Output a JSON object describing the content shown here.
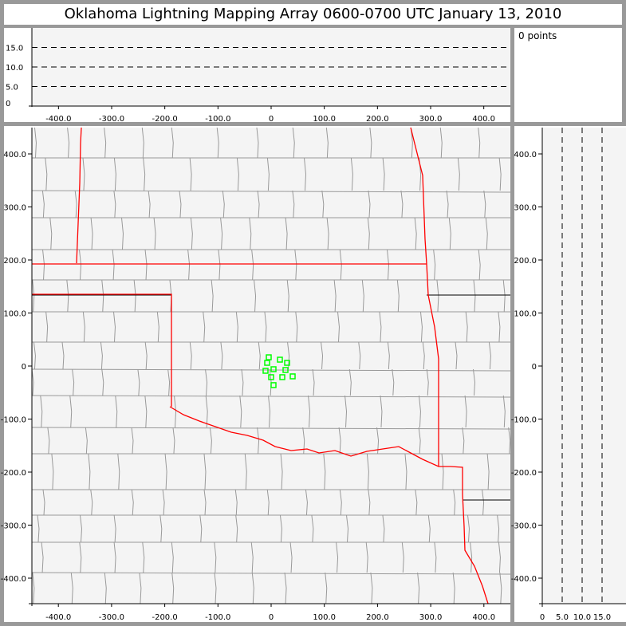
{
  "title": "Oklahoma Lightning Mapping Array   0600-0700 UTC  January 13, 2010",
  "point_count": "0 points",
  "colors": {
    "plot_bg": "#f4f4f4",
    "state_border": "#ff0000",
    "county_border": "#999999",
    "station": "#00ff00",
    "frame": "#999999"
  },
  "chart_data": [
    {
      "type": "line",
      "name": "altitude-vs-x",
      "x_ticks": [
        "-400.0",
        "-300.0",
        "-200.0",
        "-100.0",
        "0",
        "100.0",
        "200.0",
        "300.0",
        "400.0"
      ],
      "x_tick_values": [
        -400,
        -300,
        -200,
        -100,
        0,
        100,
        200,
        300,
        400
      ],
      "y_ticks": [
        "0",
        "5.0",
        "10.0",
        "15.0"
      ],
      "y_tick_values": [
        0,
        5,
        10,
        15
      ],
      "xlim": [
        -450,
        450
      ],
      "ylim": [
        0,
        20
      ],
      "dashed_levels": [
        5,
        10,
        15
      ],
      "points": []
    },
    {
      "type": "scatter",
      "name": "plan-view-map",
      "x_ticks": [
        "-400.0",
        "-300.0",
        "-200.0",
        "-100.0",
        "0",
        "100.0",
        "200.0",
        "300.0",
        "400.0"
      ],
      "x_tick_values": [
        -400,
        -300,
        -200,
        -100,
        0,
        100,
        200,
        300,
        400
      ],
      "y_ticks": [
        "400.0",
        "300.0",
        "200.0",
        "100.0",
        "0",
        "-100.0",
        "-200.0",
        "-300.0",
        "-400.0"
      ],
      "y_tick_values": [
        400,
        300,
        200,
        100,
        0,
        -100,
        -200,
        -300,
        -400
      ],
      "xlim": [
        -450,
        450
      ],
      "ylim": [
        -450,
        450
      ],
      "stations": [
        {
          "x": -4.5,
          "y": 16.5
        },
        {
          "x": -7.5,
          "y": 6
        },
        {
          "x": 16.5,
          "y": 12
        },
        {
          "x": 30,
          "y": 6
        },
        {
          "x": -10.5,
          "y": -9
        },
        {
          "x": 4.5,
          "y": -6
        },
        {
          "x": 27,
          "y": -7.5
        },
        {
          "x": 0,
          "y": -21
        },
        {
          "x": 21,
          "y": -21
        },
        {
          "x": 40.5,
          "y": -19.5
        },
        {
          "x": 4.5,
          "y": -36
        }
      ],
      "points": []
    },
    {
      "type": "line",
      "name": "y-vs-altitude",
      "x_ticks": [
        "0",
        "5.0",
        "10.0",
        "15.0"
      ],
      "x_tick_values": [
        0,
        5,
        10,
        15
      ],
      "y_ticks": [
        "400.0",
        "300.0",
        "200.0",
        "100.0",
        "0",
        "-100.0",
        "-200.0",
        "-300.0",
        "-400.0"
      ],
      "y_tick_values": [
        400,
        300,
        200,
        100,
        0,
        -100,
        -200,
        -300,
        -400
      ],
      "xlim": [
        0,
        20
      ],
      "ylim": [
        -450,
        450
      ],
      "dashed_levels": [
        5,
        10,
        15
      ],
      "points": []
    }
  ]
}
